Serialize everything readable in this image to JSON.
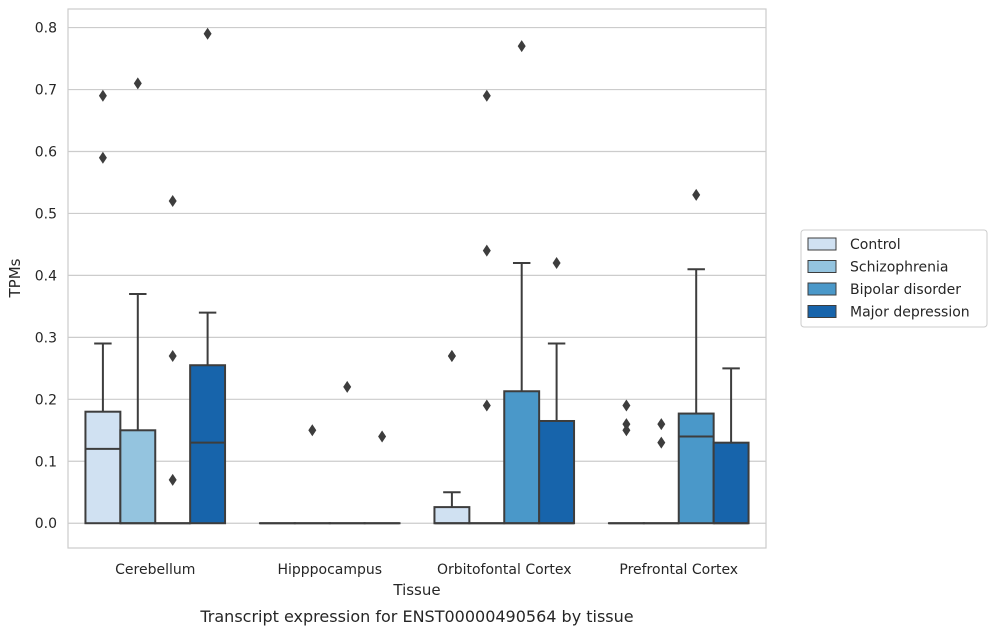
{
  "chart_data": {
    "type": "boxplot",
    "caption": "Transcript expression for ENST00000490564 by tissue",
    "xlabel": "Tissue",
    "ylabel": "TPMs",
    "ylim": [
      -0.04,
      0.83
    ],
    "yticks": [
      "0.0",
      "0.1",
      "0.2",
      "0.3",
      "0.4",
      "0.5",
      "0.6",
      "0.7",
      "0.8"
    ],
    "categories": [
      "Cerebellum",
      "Hipppocampus",
      "Orbitofontal Cortex",
      "Prefrontal Cortex"
    ],
    "grid": "horizontal",
    "legend_position": "right",
    "series": [
      {
        "name": "Control",
        "color": "#d0e1f2",
        "boxes": [
          {
            "q1": 0.0,
            "median": 0.12,
            "q3": 0.18,
            "whisker_low": 0.0,
            "whisker_high": 0.29,
            "outliers": [
              0.59,
              0.69
            ]
          },
          {
            "q1": 0.0,
            "median": 0.0,
            "q3": 0.0,
            "whisker_low": 0.0,
            "whisker_high": 0.0,
            "outliers": []
          },
          {
            "q1": 0.0,
            "median": 0.0,
            "q3": 0.026,
            "whisker_low": 0.0,
            "whisker_high": 0.05,
            "outliers": [
              0.27,
              0.27
            ]
          },
          {
            "q1": 0.0,
            "median": 0.0,
            "q3": 0.0,
            "whisker_low": 0.0,
            "whisker_high": 0.0,
            "outliers": [
              0.15,
              0.16,
              0.19
            ]
          }
        ]
      },
      {
        "name": "Schizophrenia",
        "color": "#94c4df",
        "boxes": [
          {
            "q1": 0.0,
            "median": 0.0,
            "q3": 0.15,
            "whisker_low": 0.0,
            "whisker_high": 0.37,
            "outliers": [
              0.71
            ]
          },
          {
            "q1": 0.0,
            "median": 0.0,
            "q3": 0.0,
            "whisker_low": 0.0,
            "whisker_high": 0.0,
            "outliers": [
              0.15
            ]
          },
          {
            "q1": 0.0,
            "median": 0.0,
            "q3": 0.0,
            "whisker_low": 0.0,
            "whisker_high": 0.0,
            "outliers": [
              0.19,
              0.44,
              0.69
            ]
          },
          {
            "q1": 0.0,
            "median": 0.0,
            "q3": 0.0,
            "whisker_low": 0.0,
            "whisker_high": 0.0,
            "outliers": [
              0.13,
              0.16
            ]
          }
        ]
      },
      {
        "name": "Bipolar disorder",
        "color": "#4a98c9",
        "boxes": [
          {
            "q1": 0.0,
            "median": 0.0,
            "q3": 0.0,
            "whisker_low": 0.0,
            "whisker_high": 0.0,
            "outliers": [
              0.07,
              0.27,
              0.52
            ]
          },
          {
            "q1": 0.0,
            "median": 0.0,
            "q3": 0.0,
            "whisker_low": 0.0,
            "whisker_high": 0.0,
            "outliers": [
              0.22
            ]
          },
          {
            "q1": 0.0,
            "median": 0.0,
            "q3": 0.213,
            "whisker_low": 0.0,
            "whisker_high": 0.42,
            "outliers": [
              0.77
            ]
          },
          {
            "q1": 0.0,
            "median": 0.14,
            "q3": 0.177,
            "whisker_low": 0.0,
            "whisker_high": 0.41,
            "outliers": [
              0.53
            ]
          }
        ]
      },
      {
        "name": "Major depression",
        "color": "#1764ab",
        "boxes": [
          {
            "q1": 0.0,
            "median": 0.13,
            "q3": 0.255,
            "whisker_low": 0.0,
            "whisker_high": 0.34,
            "outliers": [
              0.79
            ]
          },
          {
            "q1": 0.0,
            "median": 0.0,
            "q3": 0.0,
            "whisker_low": 0.0,
            "whisker_high": 0.0,
            "outliers": [
              0.14
            ]
          },
          {
            "q1": 0.0,
            "median": 0.0,
            "q3": 0.165,
            "whisker_low": 0.0,
            "whisker_high": 0.29,
            "outliers": [
              0.42
            ]
          },
          {
            "q1": 0.0,
            "median": 0.0,
            "q3": 0.13,
            "whisker_low": 0.0,
            "whisker_high": 0.25,
            "outliers": []
          }
        ]
      }
    ]
  }
}
